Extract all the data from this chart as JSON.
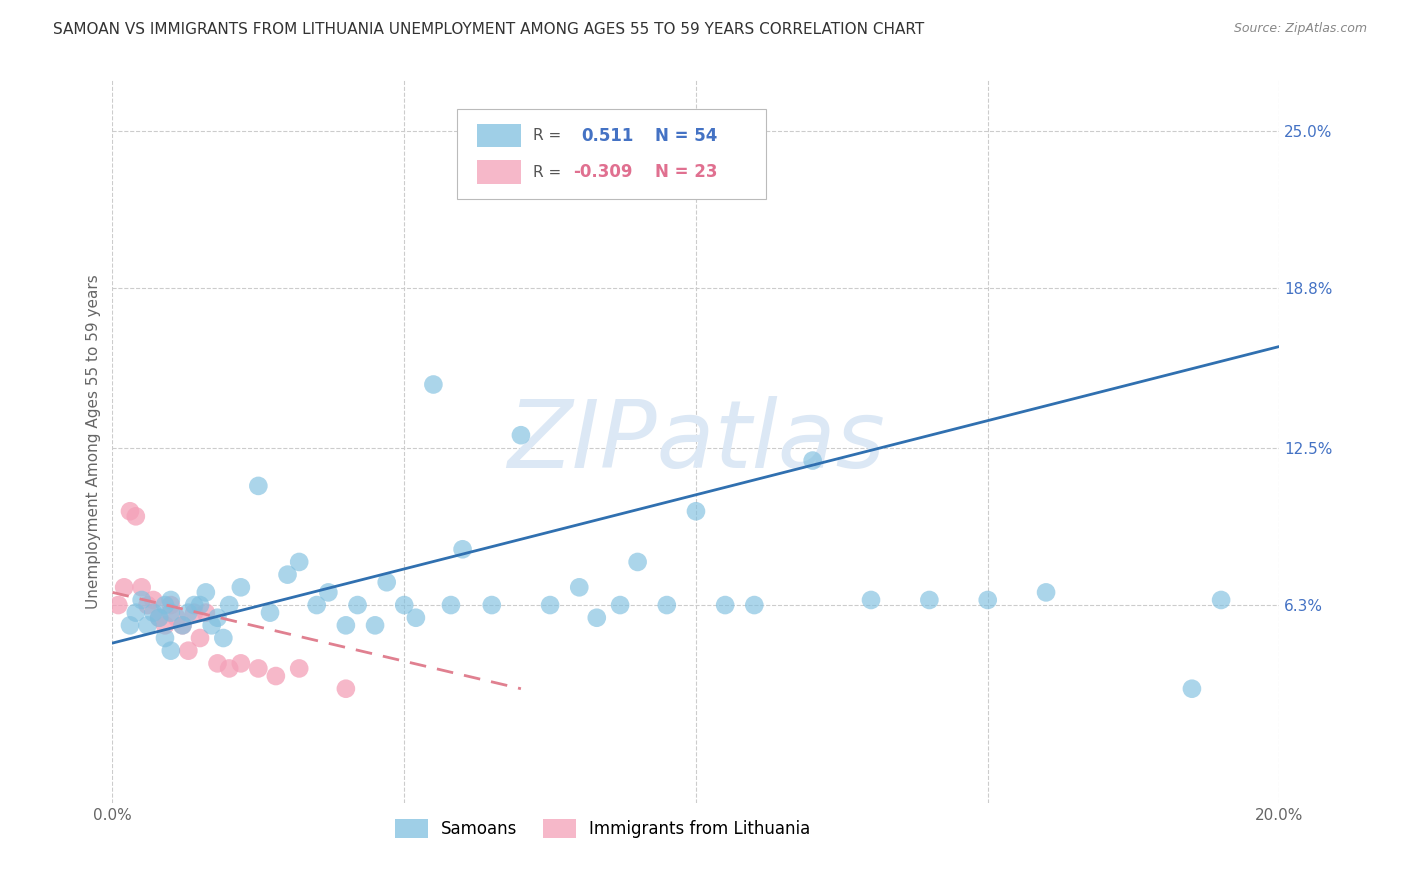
{
  "title": "SAMOAN VS IMMIGRANTS FROM LITHUANIA UNEMPLOYMENT AMONG AGES 55 TO 59 YEARS CORRELATION CHART",
  "source": "Source: ZipAtlas.com",
  "ylabel": "Unemployment Among Ages 55 to 59 years",
  "xlabel": "",
  "xlim": [
    0.0,
    0.2
  ],
  "ylim": [
    -0.015,
    0.27
  ],
  "yticks": [
    0.063,
    0.125,
    0.188,
    0.25
  ],
  "ytick_labels": [
    "6.3%",
    "12.5%",
    "18.8%",
    "25.0%"
  ],
  "xticks": [
    0.0,
    0.05,
    0.1,
    0.15,
    0.2
  ],
  "xtick_labels": [
    "0.0%",
    "",
    "",
    "",
    "20.0%"
  ],
  "grid_color": "#cccccc",
  "background_color": "#ffffff",
  "samoan_color": "#7fbfdf",
  "lithuania_color": "#f4a0b8",
  "samoan_line_color": "#3070b0",
  "lithuania_line_color": "#e08090",
  "R_samoan": 0.511,
  "N_samoan": 54,
  "R_lithuania": -0.309,
  "N_lithuania": 23,
  "legend_label_samoan": "Samoans",
  "legend_label_lithuania": "Immigrants from Lithuania",
  "watermark": "ZIPatlas",
  "watermark_color": "#dce8f5",
  "title_fontsize": 11,
  "axis_label_fontsize": 11,
  "tick_fontsize": 11,
  "samoan_x": [
    0.003,
    0.004,
    0.005,
    0.006,
    0.007,
    0.008,
    0.009,
    0.009,
    0.01,
    0.01,
    0.01,
    0.012,
    0.013,
    0.014,
    0.015,
    0.016,
    0.017,
    0.018,
    0.019,
    0.02,
    0.022,
    0.025,
    0.027,
    0.03,
    0.032,
    0.035,
    0.037,
    0.04,
    0.042,
    0.045,
    0.047,
    0.05,
    0.052,
    0.055,
    0.058,
    0.06,
    0.065,
    0.07,
    0.075,
    0.08,
    0.083,
    0.087,
    0.09,
    0.095,
    0.1,
    0.105,
    0.11,
    0.12,
    0.13,
    0.14,
    0.15,
    0.16,
    0.185,
    0.19
  ],
  "samoan_y": [
    0.055,
    0.06,
    0.065,
    0.055,
    0.06,
    0.058,
    0.063,
    0.05,
    0.065,
    0.06,
    0.045,
    0.055,
    0.06,
    0.063,
    0.063,
    0.068,
    0.055,
    0.058,
    0.05,
    0.063,
    0.07,
    0.11,
    0.06,
    0.075,
    0.08,
    0.063,
    0.068,
    0.055,
    0.063,
    0.055,
    0.072,
    0.063,
    0.058,
    0.15,
    0.063,
    0.085,
    0.063,
    0.13,
    0.063,
    0.07,
    0.058,
    0.063,
    0.08,
    0.063,
    0.1,
    0.063,
    0.063,
    0.12,
    0.065,
    0.065,
    0.065,
    0.068,
    0.03,
    0.065
  ],
  "lithuania_x": [
    0.001,
    0.002,
    0.003,
    0.004,
    0.005,
    0.006,
    0.007,
    0.008,
    0.009,
    0.01,
    0.011,
    0.012,
    0.013,
    0.014,
    0.015,
    0.016,
    0.018,
    0.02,
    0.022,
    0.025,
    0.028,
    0.032,
    0.04
  ],
  "lithuania_y": [
    0.063,
    0.07,
    0.1,
    0.098,
    0.07,
    0.063,
    0.065,
    0.058,
    0.055,
    0.063,
    0.058,
    0.055,
    0.045,
    0.06,
    0.05,
    0.06,
    0.04,
    0.038,
    0.04,
    0.038,
    0.035,
    0.038,
    0.03
  ],
  "samoan_trendline_x": [
    0.0,
    0.2
  ],
  "samoan_trendline_y": [
    0.048,
    0.165
  ],
  "lithuania_trendline_x": [
    0.0,
    0.07
  ],
  "lithuania_trendline_y": [
    0.068,
    0.03
  ]
}
